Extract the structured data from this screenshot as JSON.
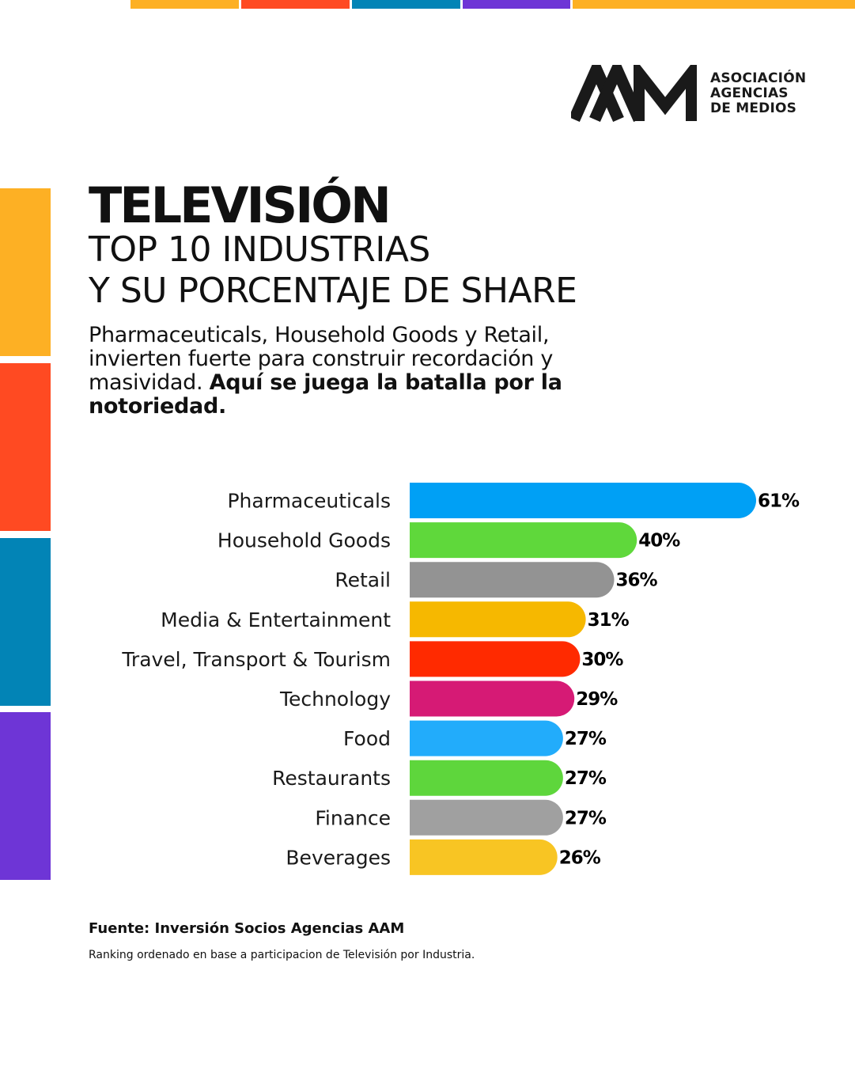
{
  "brand": {
    "logo_lines": [
      "ASOCIACIÓN",
      "AGENCIAS",
      "DE MEDIOS"
    ],
    "colors": {
      "yellow": "#FDB024",
      "orange_red": "#FF4A22",
      "blue": "#0284B6",
      "purple": "#6E35D6"
    }
  },
  "heading": {
    "title": "TELEVISIÓN",
    "subtitle_line1": "TOP 10 INDUSTRIAS",
    "subtitle_line2": "Y SU PORCENTAJE DE SHARE"
  },
  "description": {
    "regular": "Pharmaceuticals, Household Goods y Retail, invierten fuerte para construir recordación y masividad. ",
    "bold": "Aquí se juega la batalla por la notoriedad."
  },
  "chart_data": {
    "type": "bar",
    "orientation": "horizontal",
    "categories": [
      "Pharmaceuticals",
      "Household Goods",
      "Retail",
      "Media & Entertainment",
      "Travel, Transport & Tourism",
      "Technology",
      "Food",
      "Restaurants",
      "Finance",
      "Beverages"
    ],
    "values": [
      61,
      40,
      36,
      31,
      30,
      29,
      27,
      27,
      27,
      26
    ],
    "value_labels": [
      "61%",
      "40%",
      "36%",
      "31%",
      "30%",
      "29%",
      "27%",
      "27%",
      "27%",
      "26%"
    ],
    "bar_colors": [
      "#00A0F5",
      "#5FD83B",
      "#939393",
      "#F6B800",
      "#FF2A00",
      "#D61A75",
      "#22ACFB",
      "#5ED63C",
      "#A0A0A0",
      "#F8C523"
    ],
    "unit": "%"
  },
  "footer": {
    "source": "Fuente: Inversión Socios Agencias AAM",
    "note": "Ranking ordenado en base a participacion de Televisión por Industria."
  }
}
